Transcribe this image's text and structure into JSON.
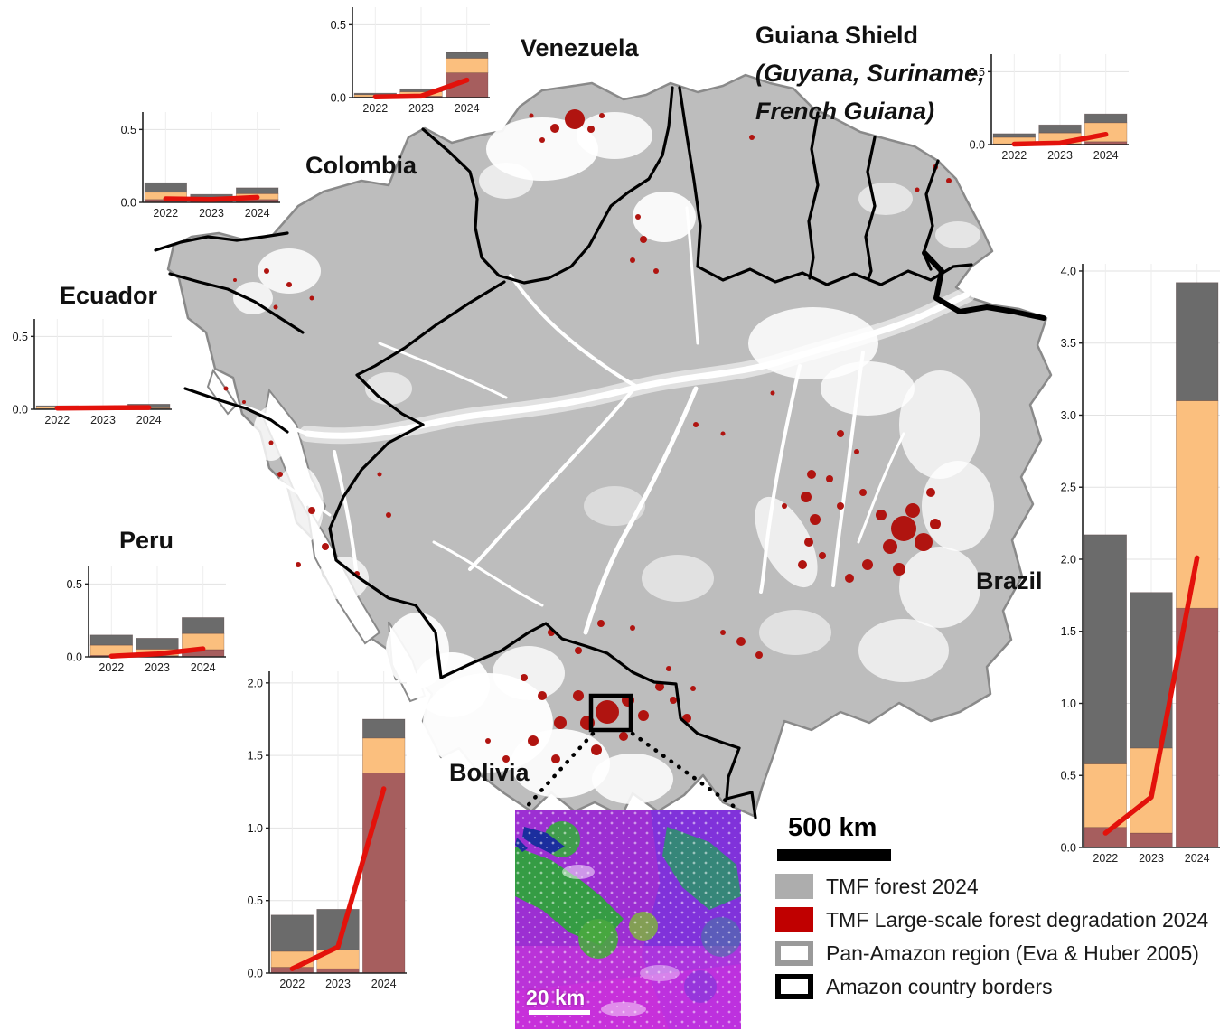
{
  "figure": {
    "labels": {
      "venezuela": "Venezuela",
      "guiana_title": "Guiana Shield",
      "guiana_sub1": "(Guyana, Suriname,",
      "guiana_sub2": "French Guiana)",
      "colombia": "Colombia",
      "ecuador": "Ecuador",
      "peru": "Peru",
      "bolivia": "Bolivia",
      "brazil": "Brazil"
    },
    "scale_bar": {
      "label": "500 km"
    },
    "inset": {
      "scale_label": "20 km"
    },
    "legend": {
      "items": [
        {
          "swatch": "gray-fill",
          "label": "TMF forest 2024"
        },
        {
          "swatch": "red-fill",
          "label": "TMF Large-scale forest degradation 2024"
        },
        {
          "swatch": "gray-outline",
          "label": "Pan-Amazon region (Eva & Huber 2005)"
        },
        {
          "swatch": "black-outline",
          "label": "Amazon country borders"
        }
      ]
    },
    "colors": {
      "bar_darkred": "#A65E5E",
      "bar_orange": "#FBBF7E",
      "bar_gray": "#6B6B6B",
      "line_red": "#E3120B",
      "map_forest": "#BDBDBD",
      "map_degradation": "#B01410",
      "legend_forest": "#ADADAD",
      "legend_degradation": "#C00000",
      "region_outline": "#8A8A8A",
      "border_black": "#000000"
    }
  },
  "chart_data": [
    {
      "id": "venezuela",
      "type": "bar",
      "categories": [
        "2022",
        "2023",
        "2024"
      ],
      "series": [
        {
          "name": "dark-red-bottom",
          "color_key": "bar_darkred",
          "values": [
            0.005,
            0.01,
            0.17
          ]
        },
        {
          "name": "orange-middle",
          "color_key": "bar_orange",
          "values": [
            0.015,
            0.03,
            0.1
          ]
        },
        {
          "name": "gray-top",
          "color_key": "bar_gray",
          "values": [
            0.01,
            0.02,
            0.04
          ]
        }
      ],
      "line": {
        "name": "red-trend",
        "color_key": "line_red",
        "values": [
          0.005,
          0.01,
          0.12
        ]
      },
      "ylim": [
        0,
        0.62
      ],
      "yticks": [
        0.0,
        0.5
      ],
      "grid": true,
      "legend": "none"
    },
    {
      "id": "colombia",
      "type": "bar",
      "categories": [
        "2022",
        "2023",
        "2024"
      ],
      "series": [
        {
          "name": "dark-red-bottom",
          "color_key": "bar_darkred",
          "values": [
            0.02,
            0.01,
            0.02
          ]
        },
        {
          "name": "orange-middle",
          "color_key": "bar_orange",
          "values": [
            0.05,
            0.015,
            0.04
          ]
        },
        {
          "name": "gray-top",
          "color_key": "bar_gray",
          "values": [
            0.065,
            0.03,
            0.04
          ]
        }
      ],
      "line": {
        "name": "red-trend",
        "color_key": "line_red",
        "values": [
          0.025,
          0.02,
          0.035
        ]
      },
      "ylim": [
        0,
        0.62
      ],
      "yticks": [
        0.0,
        0.5
      ],
      "grid": true,
      "legend": "none"
    },
    {
      "id": "ecuador",
      "type": "bar",
      "categories": [
        "2022",
        "2023",
        "2024"
      ],
      "series": [
        {
          "name": "dark-red-bottom",
          "color_key": "bar_darkred",
          "values": [
            0.004,
            0.004,
            0.004
          ]
        },
        {
          "name": "orange-middle",
          "color_key": "bar_orange",
          "values": [
            0.012,
            0.006,
            0.006
          ]
        },
        {
          "name": "gray-top",
          "color_key": "bar_gray",
          "values": [
            0.008,
            0.005,
            0.025
          ]
        }
      ],
      "line": {
        "name": "red-trend",
        "color_key": "line_red",
        "values": [
          0.008,
          0.01,
          0.012
        ]
      },
      "ylim": [
        0,
        0.62
      ],
      "yticks": [
        0.0,
        0.5
      ],
      "grid": true,
      "legend": "none"
    },
    {
      "id": "peru",
      "type": "bar",
      "categories": [
        "2022",
        "2023",
        "2024"
      ],
      "series": [
        {
          "name": "dark-red-bottom",
          "color_key": "bar_darkred",
          "values": [
            0.01,
            0.008,
            0.05
          ]
        },
        {
          "name": "orange-middle",
          "color_key": "bar_orange",
          "values": [
            0.07,
            0.045,
            0.11
          ]
        },
        {
          "name": "gray-top",
          "color_key": "bar_gray",
          "values": [
            0.07,
            0.075,
            0.11
          ]
        }
      ],
      "line": {
        "name": "red-trend",
        "color_key": "line_red",
        "values": [
          0.005,
          0.02,
          0.055
        ]
      },
      "ylim": [
        0,
        0.62
      ],
      "yticks": [
        0.0,
        0.5
      ],
      "grid": true,
      "legend": "none"
    },
    {
      "id": "bolivia",
      "type": "bar",
      "categories": [
        "2022",
        "2023",
        "2024"
      ],
      "series": [
        {
          "name": "dark-red-bottom",
          "color_key": "bar_darkred",
          "values": [
            0.04,
            0.03,
            1.38
          ]
        },
        {
          "name": "orange-middle",
          "color_key": "bar_orange",
          "values": [
            0.11,
            0.13,
            0.24
          ]
        },
        {
          "name": "gray-top",
          "color_key": "bar_gray",
          "values": [
            0.25,
            0.28,
            0.13
          ]
        }
      ],
      "line": {
        "name": "red-trend",
        "color_key": "line_red",
        "values": [
          0.03,
          0.18,
          1.27
        ]
      },
      "ylim": [
        0,
        2.08
      ],
      "yticks": [
        0.0,
        0.5,
        1.0,
        1.5,
        2.0
      ],
      "grid": true,
      "legend": "none"
    },
    {
      "id": "brazil",
      "type": "bar",
      "categories": [
        "2022",
        "2023",
        "2024"
      ],
      "series": [
        {
          "name": "dark-red-bottom",
          "color_key": "bar_darkred",
          "values": [
            0.14,
            0.1,
            1.66
          ]
        },
        {
          "name": "orange-middle",
          "color_key": "bar_orange",
          "values": [
            0.44,
            0.59,
            1.44
          ]
        },
        {
          "name": "gray-top",
          "color_key": "bar_gray",
          "values": [
            1.59,
            1.08,
            0.82
          ]
        }
      ],
      "line": {
        "name": "red-trend",
        "color_key": "line_red",
        "values": [
          0.1,
          0.35,
          2.01
        ]
      },
      "ylim": [
        0,
        4.05
      ],
      "yticks": [
        0.0,
        0.5,
        1.0,
        1.5,
        2.0,
        2.5,
        3.0,
        3.5,
        4.0
      ],
      "grid": true,
      "legend": "none"
    },
    {
      "id": "guiana",
      "type": "bar",
      "categories": [
        "2022",
        "2023",
        "2024"
      ],
      "series": [
        {
          "name": "dark-red-bottom",
          "color_key": "bar_darkred",
          "values": [
            0.005,
            0.005,
            0.02
          ]
        },
        {
          "name": "orange-middle",
          "color_key": "bar_orange",
          "values": [
            0.045,
            0.075,
            0.13
          ]
        },
        {
          "name": "gray-top",
          "color_key": "bar_gray",
          "values": [
            0.025,
            0.055,
            0.06
          ]
        }
      ],
      "line": {
        "name": "red-trend",
        "color_key": "line_red",
        "values": [
          0.003,
          0.01,
          0.07
        ]
      },
      "ylim": [
        0,
        0.62
      ],
      "yticks": [
        0.0,
        0.5
      ],
      "grid": true,
      "legend": "none"
    }
  ]
}
